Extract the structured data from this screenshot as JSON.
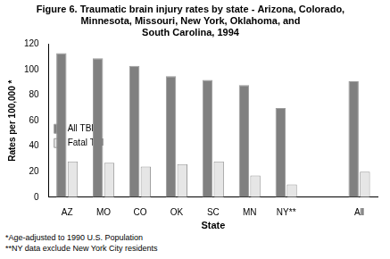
{
  "chart_data": {
    "type": "bar",
    "title": [
      "Figure 6. Traumatic brain injury rates by state - Arizona, Colorado,",
      "Minnesota, Missouri, New York, Oklahoma, and",
      "South Carolina, 1994"
    ],
    "x_label": "State",
    "y_label": "Rates per 100,000 *",
    "categories": [
      "AZ",
      "MO",
      "CO",
      "OK",
      "SC",
      "MN",
      "NY**",
      null,
      "All"
    ],
    "series": [
      {
        "name": "All TBI",
        "color": "#808080",
        "values": [
          113,
          109,
          103,
          95,
          92,
          88,
          70,
          null,
          91
        ]
      },
      {
        "name": "Fatal TBI",
        "color": "#e6e6e6",
        "values": [
          28,
          27,
          24,
          26,
          28,
          17,
          10,
          null,
          20
        ]
      }
    ],
    "ylim": [
      0,
      120
    ],
    "yticks": [
      0,
      20,
      40,
      60,
      80,
      100,
      120
    ],
    "grid": false,
    "legend": "upper right",
    "annotations": [
      "*Age-adjusted to 1990 U.S. Population",
      "**NY data exclude New York City residents"
    ]
  }
}
